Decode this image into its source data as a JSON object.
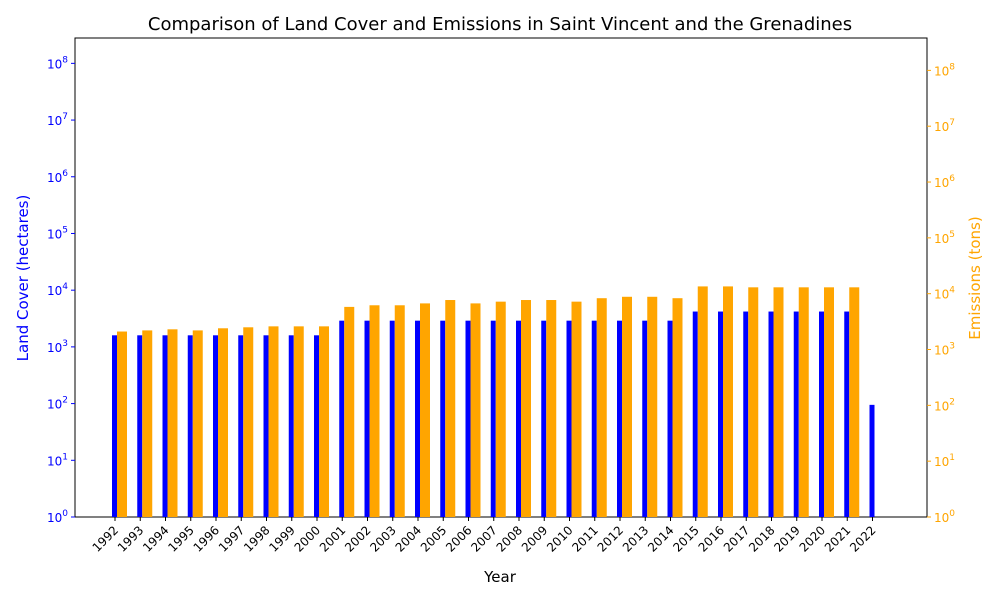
{
  "chart_data": {
    "type": "bar",
    "title": "Comparison of Land Cover and Emissions in Saint Vincent and the Grenadines",
    "xlabel": "Year",
    "ylabel_left": "Land Cover (hectares)",
    "ylabel_right": "Emissions (tons)",
    "yscale": "log",
    "ylim_left": [
      1,
      280000000
    ],
    "ylim_right": [
      1,
      380000000
    ],
    "left_ticks": [
      1,
      10,
      100,
      1000,
      10000,
      100000,
      1000000,
      10000000,
      100000000
    ],
    "right_ticks": [
      1,
      10,
      100,
      1000,
      10000,
      100000,
      1000000,
      10000000,
      100000000
    ],
    "left_tick_labels": [
      "10^0",
      "10^1",
      "10^2",
      "10^3",
      "10^4",
      "10^5",
      "10^6",
      "10^7",
      "10^8"
    ],
    "right_tick_labels": [
      "10^0",
      "10^1",
      "10^2",
      "10^3",
      "10^4",
      "10^5",
      "10^6",
      "10^7",
      "10^8"
    ],
    "categories": [
      "1992",
      "1993",
      "1994",
      "1995",
      "1996",
      "1997",
      "1998",
      "1999",
      "2000",
      "2001",
      "2002",
      "2003",
      "2004",
      "2005",
      "2006",
      "2007",
      "2008",
      "2009",
      "2010",
      "2011",
      "2012",
      "2013",
      "2014",
      "2015",
      "2016",
      "2017",
      "2018",
      "2019",
      "2020",
      "2021",
      "2022"
    ],
    "series": [
      {
        "axis": "left",
        "color": "#0000ff",
        "values": [
          1600,
          1600,
          1600,
          1600,
          1600,
          1600,
          1600,
          1600,
          1600,
          2900,
          2900,
          2900,
          2900,
          2900,
          2900,
          2900,
          2900,
          2900,
          2900,
          2900,
          2900,
          2900,
          2900,
          4200,
          4200,
          4200,
          4200,
          4200,
          4200,
          4200,
          95
        ]
      },
      {
        "axis": "right",
        "color": "#ffa500",
        "values": [
          2100,
          2200,
          2300,
          2200,
          2400,
          2500,
          2600,
          2600,
          2600,
          5800,
          6200,
          6200,
          6700,
          7700,
          6700,
          7200,
          7700,
          7700,
          7200,
          8300,
          8800,
          8800,
          8300,
          13500,
          13500,
          13000,
          13000,
          13000,
          13000,
          13000,
          null
        ]
      }
    ]
  }
}
